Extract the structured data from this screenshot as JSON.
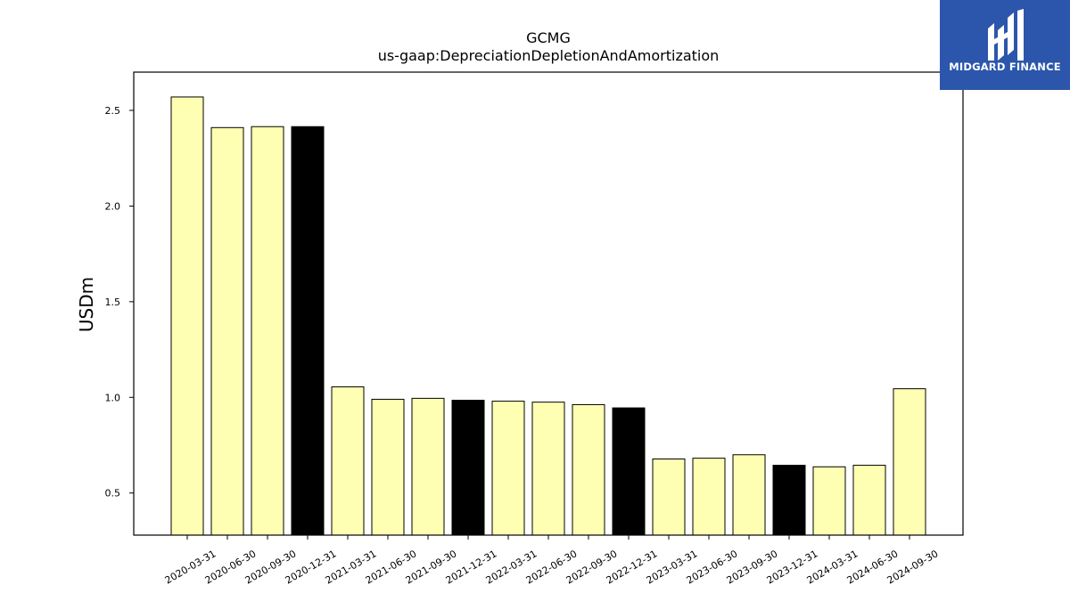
{
  "chart_data": {
    "type": "bar",
    "title": "GCMG",
    "subtitle": "us-gaap:DepreciationDepletionAndAmortization",
    "xlabel": "",
    "ylabel": "USDm",
    "ylim": [
      0.28,
      2.7
    ],
    "yticks": [
      "0.5",
      "1.0",
      "1.5",
      "2.0",
      "2.5"
    ],
    "grid": false,
    "colors": {
      "quarter": "#ffffb3",
      "year_end": "#000000",
      "edge": "#000000"
    },
    "categories": [
      "2020-03-31",
      "2020-06-30",
      "2020-09-30",
      "2020-12-31",
      "2021-03-31",
      "2021-06-30",
      "2021-09-30",
      "2021-12-31",
      "2022-03-31",
      "2022-06-30",
      "2022-09-30",
      "2022-12-31",
      "2023-03-31",
      "2023-06-30",
      "2023-09-30",
      "2023-12-31",
      "2024-03-31",
      "2024-06-30",
      "2024-09-30"
    ],
    "values": [
      2.57,
      2.41,
      2.415,
      2.415,
      1.055,
      0.99,
      0.995,
      0.985,
      0.98,
      0.975,
      0.962,
      0.945,
      0.678,
      0.682,
      0.7,
      0.645,
      0.637,
      0.645,
      1.045
    ],
    "highlight": [
      false,
      false,
      false,
      true,
      false,
      false,
      false,
      true,
      false,
      false,
      false,
      true,
      false,
      false,
      false,
      true,
      false,
      false,
      false
    ]
  },
  "logo": {
    "text": "MIDGARD FINANCE",
    "background": "#2b56ab"
  }
}
